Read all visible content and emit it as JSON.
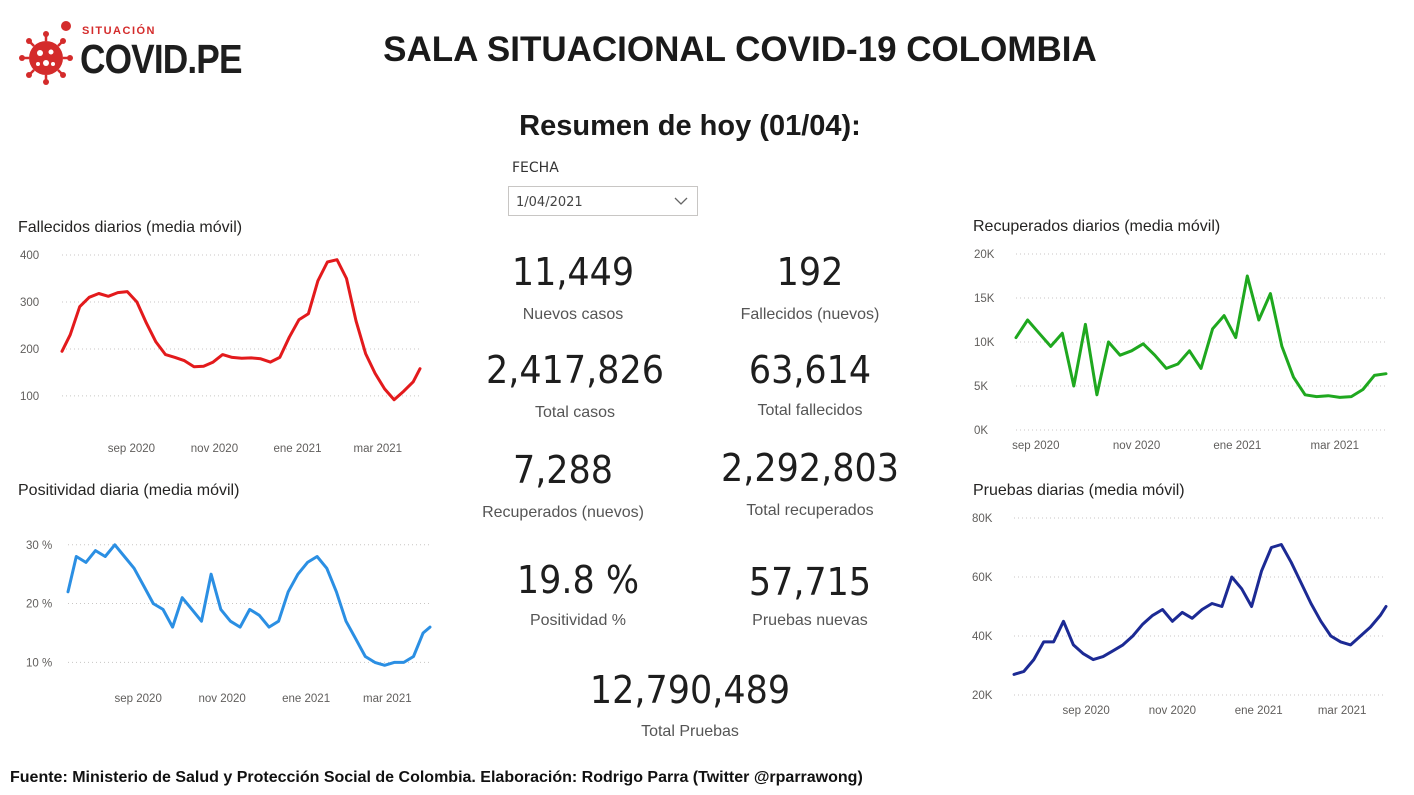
{
  "header": {
    "logo_small": "SITUACIÓN",
    "logo_brand": "COVID.PE",
    "title": "SALA SITUACIONAL COVID-19 COLOMBIA",
    "subtitle": "Resumen de hoy (01/04):"
  },
  "filter": {
    "label": "FECHA",
    "value": "1/04/2021"
  },
  "kpis": {
    "nuevos_casos": {
      "value": "11,449",
      "label": "Nuevos casos"
    },
    "fallecidos_nuevos": {
      "value": "192",
      "label": "Fallecidos (nuevos)"
    },
    "total_casos": {
      "value": "2,417,826",
      "label": "Total casos"
    },
    "total_fallecidos": {
      "value": "63,614",
      "label": "Total fallecidos"
    },
    "recuperados_nuevos": {
      "value": "7,288",
      "label": "Recuperados (nuevos)"
    },
    "total_recuperados": {
      "value": "2,292,803",
      "label": "Total recuperados"
    },
    "positividad": {
      "value": "19.8 %",
      "label": "Positividad %"
    },
    "pruebas_nuevas": {
      "value": "57,715",
      "label": "Pruebas nuevas"
    },
    "total_pruebas": {
      "value": "12,790,489",
      "label": "Total Pruebas"
    }
  },
  "colors": {
    "fallecidos": "#e31a1c",
    "positividad": "#2b8fe3",
    "recuperados": "#1fa81f",
    "pruebas": "#1c2a94",
    "grid": "#c8c6c4"
  },
  "chart_data": [
    {
      "id": "fallecidos",
      "type": "line",
      "title": "Fallecidos diarios (media móvil)",
      "xlim": [
        "2020-07-12",
        "2021-04-01"
      ],
      "ylim": [
        70,
        400
      ],
      "yticks": [
        100,
        200,
        300,
        400
      ],
      "ytick_labels": [
        "100",
        "200",
        "300",
        "400"
      ],
      "xticks": [
        {
          "date": "2020-09-01",
          "label": "sep 2020"
        },
        {
          "date": "2020-11-01",
          "label": "nov 2020"
        },
        {
          "date": "2021-01-01",
          "label": "ene 2021"
        },
        {
          "date": "2021-03-01",
          "label": "mar 2021"
        }
      ],
      "grid": true,
      "series": [
        {
          "x": [
            "2020-07-12",
            "2020-07-18",
            "2020-07-25",
            "2020-08-01",
            "2020-08-08",
            "2020-08-15",
            "2020-08-22",
            "2020-08-29",
            "2020-09-05",
            "2020-09-12",
            "2020-09-19",
            "2020-09-26",
            "2020-10-03",
            "2020-10-10",
            "2020-10-17",
            "2020-10-24",
            "2020-10-31",
            "2020-11-07",
            "2020-11-14",
            "2020-11-21",
            "2020-11-28",
            "2020-12-05",
            "2020-12-12",
            "2020-12-19",
            "2020-12-26",
            "2021-01-02",
            "2021-01-09",
            "2021-01-16",
            "2021-01-23",
            "2021-01-30",
            "2021-02-06",
            "2021-02-13",
            "2021-02-20",
            "2021-02-27",
            "2021-03-06",
            "2021-03-13",
            "2021-03-20",
            "2021-03-27",
            "2021-04-01"
          ],
          "values": [
            195,
            230,
            290,
            310,
            318,
            312,
            320,
            322,
            300,
            255,
            215,
            188,
            182,
            175,
            162,
            163,
            172,
            188,
            182,
            180,
            181,
            179,
            172,
            182,
            225,
            262,
            275,
            345,
            385,
            390,
            350,
            260,
            190,
            148,
            115,
            92,
            110,
            130,
            158
          ]
        }
      ]
    },
    {
      "id": "positividad",
      "type": "line",
      "title": "Positividad diaria (media móvil)",
      "xlim": [
        "2020-07-12",
        "2021-04-01"
      ],
      "ylim": [
        7,
        32
      ],
      "yticks": [
        10,
        20,
        30
      ],
      "ytick_labels": [
        "10 %",
        "20 %",
        "30 %"
      ],
      "xticks": [
        {
          "date": "2020-09-01",
          "label": "sep 2020"
        },
        {
          "date": "2020-11-01",
          "label": "nov 2020"
        },
        {
          "date": "2021-01-01",
          "label": "ene 2021"
        },
        {
          "date": "2021-03-01",
          "label": "mar 2021"
        }
      ],
      "grid": true,
      "series": [
        {
          "x": [
            "2020-07-12",
            "2020-07-18",
            "2020-07-25",
            "2020-08-01",
            "2020-08-08",
            "2020-08-15",
            "2020-08-22",
            "2020-08-29",
            "2020-09-05",
            "2020-09-12",
            "2020-09-19",
            "2020-09-26",
            "2020-10-03",
            "2020-10-10",
            "2020-10-17",
            "2020-10-24",
            "2020-10-31",
            "2020-11-07",
            "2020-11-14",
            "2020-11-21",
            "2020-11-28",
            "2020-12-05",
            "2020-12-12",
            "2020-12-19",
            "2020-12-26",
            "2021-01-02",
            "2021-01-09",
            "2021-01-16",
            "2021-01-23",
            "2021-01-30",
            "2021-02-06",
            "2021-02-13",
            "2021-02-20",
            "2021-02-27",
            "2021-03-06",
            "2021-03-13",
            "2021-03-20",
            "2021-03-27",
            "2021-04-01"
          ],
          "values": [
            22,
            28,
            27,
            29,
            28,
            30,
            28,
            26,
            23,
            20,
            19,
            16,
            21,
            19,
            17,
            25,
            19,
            17,
            16,
            19,
            18,
            16,
            17,
            22,
            25,
            27,
            28,
            26,
            22,
            17,
            14,
            11,
            10,
            9.5,
            10,
            10,
            11,
            15,
            16
          ]
        }
      ]
    },
    {
      "id": "recuperados",
      "type": "line",
      "title": "Recuperados diarios (media móvil)",
      "xlim": [
        "2020-08-20",
        "2021-04-01"
      ],
      "ylim": [
        0,
        20000
      ],
      "yticks": [
        0,
        5000,
        10000,
        15000,
        20000
      ],
      "ytick_labels": [
        "0K",
        "5K",
        "10K",
        "15K",
        "20K"
      ],
      "xticks": [
        {
          "date": "2020-09-01",
          "label": "sep 2020"
        },
        {
          "date": "2020-11-01",
          "label": "nov 2020"
        },
        {
          "date": "2021-01-01",
          "label": "ene 2021"
        },
        {
          "date": "2021-03-01",
          "label": "mar 2021"
        }
      ],
      "grid": true,
      "series": [
        {
          "x": [
            "2020-08-20",
            "2020-08-27",
            "2020-09-03",
            "2020-09-10",
            "2020-09-17",
            "2020-09-24",
            "2020-10-01",
            "2020-10-08",
            "2020-10-15",
            "2020-10-22",
            "2020-10-29",
            "2020-11-05",
            "2020-11-12",
            "2020-11-19",
            "2020-11-26",
            "2020-12-03",
            "2020-12-10",
            "2020-12-17",
            "2020-12-24",
            "2020-12-31",
            "2021-01-07",
            "2021-01-14",
            "2021-01-21",
            "2021-01-28",
            "2021-02-04",
            "2021-02-11",
            "2021-02-18",
            "2021-02-25",
            "2021-03-04",
            "2021-03-11",
            "2021-03-18",
            "2021-03-25",
            "2021-04-01"
          ],
          "values": [
            10500,
            12500,
            11000,
            9500,
            11000,
            5000,
            12000,
            4000,
            10000,
            8500,
            9000,
            9800,
            8500,
            7000,
            7500,
            9000,
            7000,
            11500,
            13000,
            10500,
            17500,
            12500,
            15500,
            9500,
            6000,
            4000,
            3800,
            3900,
            3700,
            3800,
            4600,
            6200,
            6400
          ]
        }
      ]
    },
    {
      "id": "pruebas",
      "type": "line",
      "title": "Pruebas diarias (media móvil)",
      "xlim": [
        "2020-07-12",
        "2021-04-01"
      ],
      "ylim": [
        20000,
        80000
      ],
      "yticks": [
        20000,
        40000,
        60000,
        80000
      ],
      "ytick_labels": [
        "20K",
        "40K",
        "60K",
        "80K"
      ],
      "xticks": [
        {
          "date": "2020-09-01",
          "label": "sep 2020"
        },
        {
          "date": "2020-11-01",
          "label": "nov 2020"
        },
        {
          "date": "2021-01-01",
          "label": "ene 2021"
        },
        {
          "date": "2021-03-01",
          "label": "mar 2021"
        }
      ],
      "grid": true,
      "series": [
        {
          "x": [
            "2020-07-12",
            "2020-07-19",
            "2020-07-26",
            "2020-08-02",
            "2020-08-09",
            "2020-08-16",
            "2020-08-23",
            "2020-08-30",
            "2020-09-06",
            "2020-09-13",
            "2020-09-20",
            "2020-09-27",
            "2020-10-04",
            "2020-10-11",
            "2020-10-18",
            "2020-10-25",
            "2020-11-01",
            "2020-11-08",
            "2020-11-15",
            "2020-11-22",
            "2020-11-29",
            "2020-12-06",
            "2020-12-13",
            "2020-12-20",
            "2020-12-27",
            "2021-01-03",
            "2021-01-10",
            "2021-01-17",
            "2021-01-24",
            "2021-01-31",
            "2021-02-07",
            "2021-02-14",
            "2021-02-21",
            "2021-02-28",
            "2021-03-07",
            "2021-03-14",
            "2021-03-21",
            "2021-03-28",
            "2021-04-01"
          ],
          "values": [
            27000,
            28000,
            32000,
            38000,
            38000,
            45000,
            37000,
            34000,
            32000,
            33000,
            35000,
            37000,
            40000,
            44000,
            47000,
            49000,
            45000,
            48000,
            46000,
            49000,
            51000,
            50000,
            60000,
            56000,
            50000,
            62000,
            70000,
            71000,
            65000,
            58000,
            51000,
            45000,
            40000,
            38000,
            37000,
            40000,
            43000,
            47000,
            50000
          ]
        }
      ]
    }
  ],
  "footer": "Fuente: Ministerio de Salud y Protección Social de Colombia. Elaboración: Rodrigo Parra (Twitter @rparrawong)"
}
